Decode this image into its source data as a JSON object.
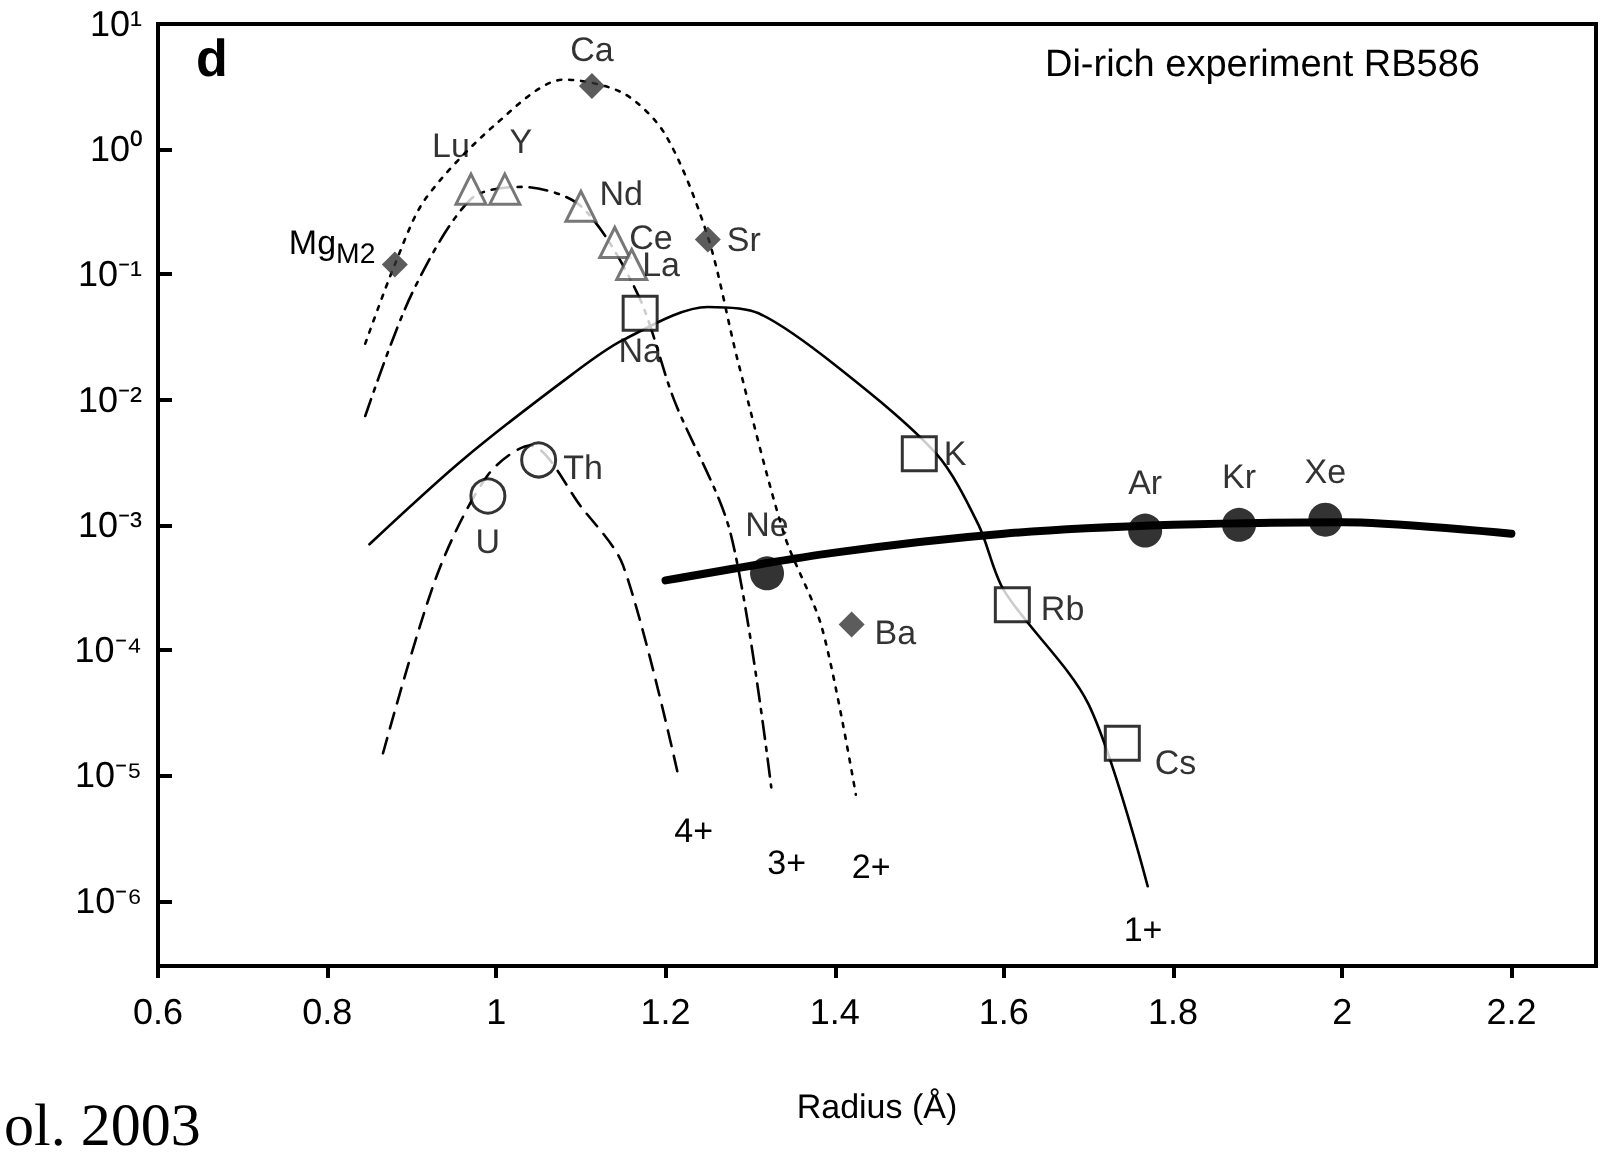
{
  "chart_data": {
    "type": "line",
    "title": "Di-rich experiment RB586",
    "xlabel": "Radius (Å)",
    "annotations": [
      "d",
      "ol. 2003"
    ],
    "xlim": [
      0.6,
      2.3
    ],
    "xticks": [
      0.6,
      0.8,
      1.0,
      1.2,
      1.4,
      1.6,
      1.8,
      2.0,
      2.2
    ],
    "ylim": [
      3e-07,
      10
    ],
    "log": true,
    "yticks": [
      {
        "value": 1e-06,
        "label": "10⁻⁶"
      },
      {
        "value": 1e-05,
        "label": "10⁻⁵"
      },
      {
        "value": 0.0001,
        "label": "10⁻⁴"
      },
      {
        "value": 0.001,
        "label": "10⁻³"
      },
      {
        "value": 0.01,
        "label": "10⁻²"
      },
      {
        "value": 0.1,
        "label": "10⁻¹"
      },
      {
        "value": 1,
        "label": "10⁰"
      },
      {
        "value": 10,
        "label": "10¹"
      }
    ],
    "grid": false,
    "legend": false,
    "series": [
      {
        "name": "4+",
        "color": "#000000",
        "line_style": "dashed",
        "marker": "none",
        "x": [
          0.866,
          0.93,
          0.99,
          1.04,
          1.1,
          1.15,
          1.215
        ],
        "values": [
          1.5e-05,
          0.0004,
          0.0025,
          0.0043,
          0.0014,
          0.00047,
          1e-05
        ]
      },
      {
        "name": "3+",
        "color": "#000000",
        "line_style": "dashed",
        "marker": "none",
        "x": [
          0.845,
          0.9,
          0.97,
          1.03,
          1.1,
          1.167,
          1.21,
          1.277,
          1.325
        ],
        "values": [
          0.0074,
          0.07,
          0.4,
          0.5,
          0.35,
          0.07,
          0.01,
          0.00085,
          8e-06
        ]
      },
      {
        "name": "2+",
        "color": "#000000",
        "line_style": "dotted",
        "marker": "none",
        "x": [
          0.845,
          0.88,
          0.916,
          1.0,
          1.08,
          1.15,
          1.2,
          1.25,
          1.285,
          1.34,
          1.385,
          1.425
        ],
        "values": [
          0.028,
          0.12,
          0.4,
          1.6,
          3.6,
          2.8,
          1.3,
          0.2,
          0.021,
          0.00085,
          0.00015,
          7e-06
        ]
      },
      {
        "name": "1+",
        "color": "#000000",
        "line_style": "solid",
        "marker": "none",
        "x": [
          0.85,
          0.96,
          1.09,
          1.15,
          1.25,
          1.31,
          1.4,
          1.52,
          1.57,
          1.6,
          1.7,
          1.77
        ],
        "values": [
          0.0007,
          0.0033,
          0.016,
          0.03,
          0.055,
          0.049,
          0.019,
          0.0037,
          0.001,
          0.0003,
          3.7e-05,
          1.3e-06
        ]
      },
      {
        "color": "#000000",
        "line_style": "solid",
        "marker": "none",
        "x": [
          1.2,
          1.4,
          1.6,
          1.8,
          2.0,
          2.2
        ],
        "values": [
          0.00036,
          0.0006,
          0.00085,
          0.001,
          0.00105,
          0.00085
        ]
      },
      {
        "type": "scatter",
        "color": "#333333",
        "marker": "diamond",
        "x": [
          0.88,
          1.113,
          1.25,
          1.42
        ],
        "values": [
          0.12,
          3.2,
          0.19,
          0.00016
        ],
        "value_labels": [
          "Mg$_{M2}$",
          "Ca",
          "Sr",
          "Ba"
        ]
      },
      {
        "type": "scatter",
        "color": "#555555",
        "marker": "triangle",
        "x": [
          0.97,
          1.01,
          1.1,
          1.14,
          1.16
        ],
        "values": [
          0.48,
          0.48,
          0.35,
          0.18,
          0.12
        ],
        "value_labels": [
          "Lu",
          "Y",
          "Nd",
          "Ce",
          "La"
        ]
      },
      {
        "type": "scatter",
        "color": "#000000",
        "marker": "square",
        "x": [
          1.17,
          1.5,
          1.61,
          1.74
        ],
        "values": [
          0.049,
          0.0037,
          0.00023,
          1.8e-05
        ],
        "value_labels": [
          "Na",
          "K",
          "Rb",
          "Cs"
        ]
      },
      {
        "type": "scatter",
        "color": "#000000",
        "marker": "circle",
        "x": [
          0.99,
          1.05
        ],
        "values": [
          0.0017,
          0.0033
        ],
        "value_labels": [
          "U",
          "Th"
        ]
      },
      {
        "type": "scatter",
        "color": "#000000",
        "marker": "circle",
        "x": [
          1.32,
          1.767,
          1.878,
          1.98
        ],
        "values": [
          0.00041,
          0.0009,
          0.001,
          0.0011
        ],
        "value_labels": [
          "Ne",
          "Ar",
          "Kr",
          "Xe"
        ]
      }
    ]
  }
}
